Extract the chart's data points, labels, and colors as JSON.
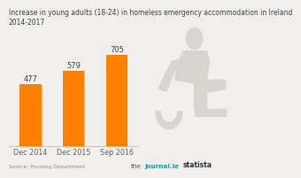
{
  "title_line1": "Increase in young adults (18-24) in homeless emergency accommodation in Ireland",
  "title_line2": "2014-2017",
  "categories": [
    "Dec 2014",
    "Dec 2015",
    "Sep 2016"
  ],
  "values": [
    477,
    579,
    705
  ],
  "bar_color": "#FF8000",
  "background_color": "#F0EFED",
  "silhouette_color": "#D8D4CF",
  "ylim": [
    0,
    780
  ],
  "bar_width": 0.5,
  "title_fontsize": 5.5,
  "tick_fontsize": 5.8,
  "value_fontsize": 6.0,
  "footer_source": "Source: Housing Department",
  "footer_journal": "thejournal.ie",
  "footer_statista": "statista",
  "journal_color": "#00AAAA",
  "statista_color": "#333333"
}
